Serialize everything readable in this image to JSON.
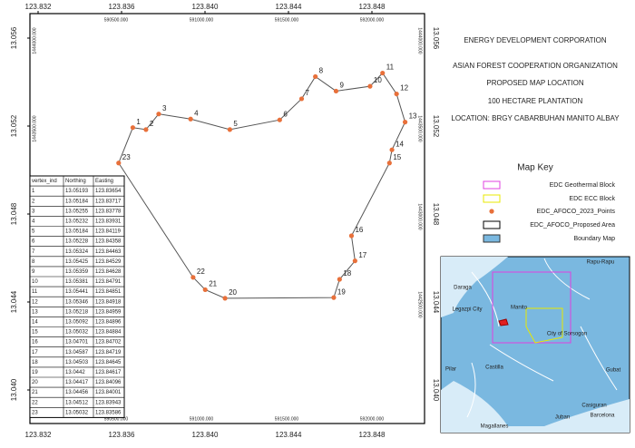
{
  "map": {
    "lon_ticks": [
      {
        "value": 123.832,
        "label": "123.832"
      },
      {
        "value": 123.836,
        "label": "123.836"
      },
      {
        "value": 123.84,
        "label": "123.840"
      },
      {
        "value": 123.844,
        "label": "123.844"
      },
      {
        "value": 123.848,
        "label": "123.848"
      }
    ],
    "lat_ticks": [
      {
        "value": 13.056,
        "label": "13.056"
      },
      {
        "value": 13.052,
        "label": "13.052"
      },
      {
        "value": 13.048,
        "label": "13.048"
      },
      {
        "value": 13.044,
        "label": "13.044"
      },
      {
        "value": 13.04,
        "label": "13.040"
      }
    ],
    "easting_labels": [
      "590500.000",
      "591000.000",
      "591500.000",
      "592000.000"
    ],
    "northing_labels": [
      "1444000.000",
      "1443500.000",
      "1443000.000",
      "1442500.000"
    ],
    "title_lines": [
      "ENERGY DEVELOPMENT CORPORATION",
      "ASIAN FOREST COOPERATION ORGANIZATION",
      "PROPOSED MAP LOCATION",
      "100 HECTARE PLANTATION",
      "LOCATION: BRGY CABARBUHAN MANITO ALBAY"
    ],
    "key_title": "Map Key",
    "key_items": [
      "EDC Geothermal Block",
      "EDC ECC Block",
      "EDC_AFOCO_2023_Points",
      "EDC_AFOCO_Proposed Area",
      "Boundary Map"
    ],
    "table_header": [
      "vertex_ind",
      "Northing",
      "Easting"
    ],
    "vertices": [
      {
        "vertex_ind": 1,
        "northing": 13.05193,
        "easting": 123.83654
      },
      {
        "vertex_ind": 2,
        "northing": 13.05184,
        "easting": 123.83717
      },
      {
        "vertex_ind": 3,
        "northing": 13.05255,
        "easting": 123.83778
      },
      {
        "vertex_ind": 4,
        "northing": 13.05232,
        "easting": 123.83931
      },
      {
        "vertex_ind": 5,
        "northing": 13.05184,
        "easting": 123.84119
      },
      {
        "vertex_ind": 6,
        "northing": 13.05228,
        "easting": 123.84358
      },
      {
        "vertex_ind": 7,
        "northing": 13.05324,
        "easting": 123.84463
      },
      {
        "vertex_ind": 8,
        "northing": 13.05425,
        "easting": 123.84529
      },
      {
        "vertex_ind": 9,
        "northing": 13.05359,
        "easting": 123.84628
      },
      {
        "vertex_ind": 10,
        "northing": 13.05381,
        "easting": 123.84791
      },
      {
        "vertex_ind": 11,
        "northing": 13.05441,
        "easting": 123.84851
      },
      {
        "vertex_ind": 12,
        "northing": 13.05346,
        "easting": 123.84918
      },
      {
        "vertex_ind": 13,
        "northing": 13.05218,
        "easting": 123.84959
      },
      {
        "vertex_ind": 14,
        "northing": 13.05092,
        "easting": 123.84896
      },
      {
        "vertex_ind": 15,
        "northing": 13.05032,
        "easting": 123.84884
      },
      {
        "vertex_ind": 16,
        "northing": 13.04701,
        "easting": 123.84702
      },
      {
        "vertex_ind": 17,
        "northing": 13.04587,
        "easting": 123.84719
      },
      {
        "vertex_ind": 18,
        "northing": 13.04503,
        "easting": 123.84645
      },
      {
        "vertex_ind": 19,
        "northing": 13.0442,
        "easting": 123.84617
      },
      {
        "vertex_ind": 20,
        "northing": 13.04417,
        "easting": 123.84096
      },
      {
        "vertex_ind": 21,
        "northing": 13.04456,
        "easting": 123.84001
      },
      {
        "vertex_ind": 22,
        "northing": 13.04512,
        "easting": 123.83943
      },
      {
        "vertex_ind": 23,
        "northing": 13.05032,
        "easting": 123.83586
      }
    ],
    "inset_places": [
      "Rapu-Rapu",
      "Daraga",
      "Legazpi City",
      "Manito",
      "City of Sorsogon",
      "Pilar",
      "Castilla",
      "Gubat",
      "Casiguran",
      "Barcelona",
      "Juban",
      "Magallanes"
    ]
  }
}
